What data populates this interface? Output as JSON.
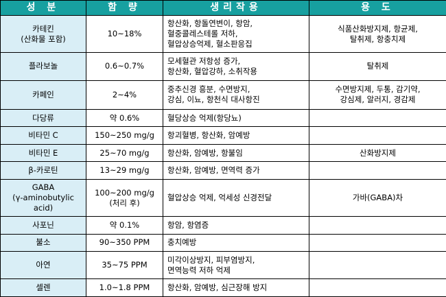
{
  "headers": {
    "component": "성 분",
    "amount": "함 량",
    "effect": "생리작용",
    "use": "용 도"
  },
  "rows": [
    {
      "component": "카테킨\n(산화물 포함)",
      "amount": "10~18%",
      "effect": "항산화, 항돌연변이, 항암,\n혈중콜레스테롤 저하,\n혈압상승억제, 혈소판응집",
      "use": "식품산화방지제, 항균제,\n탈취제, 항충치제"
    },
    {
      "component": "플라보놀",
      "amount": "0.6~0.7%",
      "effect": "모세혈관 저항성 증가,\n항산화, 혈압강하, 소취작용",
      "use": "탈취제"
    },
    {
      "component": "카페인",
      "amount": "2~4%",
      "effect": "중추신경 흥분, 수면방지,\n강심, 이뇨, 항천식 대사항진",
      "use": "수면방지제, 두통, 감기약,\n강심제, 알러지, 경감제"
    },
    {
      "component": "다당류",
      "amount": "약 0.6%",
      "effect": "혈당상승 억제(항당뇨)",
      "use": ""
    },
    {
      "component": "비타민 C",
      "amount": "150~250 mg/g",
      "effect": "항괴혈병, 항산화, 암예방",
      "use": ""
    },
    {
      "component": "비타민 E",
      "amount": "25~70 mg/g",
      "effect": "항산화, 암예방, 항불임",
      "use": "산화방지제"
    },
    {
      "component": "β-카로틴",
      "amount": "13~29 mg/g",
      "effect": "항산화, 암예방, 면역력 증가",
      "use": ""
    },
    {
      "component": "GABA\n(γ-aminobutylic\nacid)",
      "amount": "100~200 mg/g\n(처리 후)",
      "effect": "혈압상승 억제, 억세성 신경전달",
      "use": "가바(GABA)차"
    },
    {
      "component": "사포닌",
      "amount": "약 0.1%",
      "effect": "항암, 항염증",
      "use": ""
    },
    {
      "component": "불소",
      "amount": "90~350 PPM",
      "effect": "충치예방",
      "use": ""
    },
    {
      "component": "아연",
      "amount": "35~75 PPM",
      "effect": "미각이상방지, 피부염방지,\n면역능력 저하 억제",
      "use": ""
    },
    {
      "component": "셀렌",
      "amount": "1.0~1.8 PPM",
      "effect": "항산화, 암예방, 심근장해 방지",
      "use": ""
    }
  ],
  "colors": {
    "header_bg": "#17a0a0",
    "header_text": "#ffffff",
    "component_bg": "#d9eef6",
    "border": "#000000"
  }
}
